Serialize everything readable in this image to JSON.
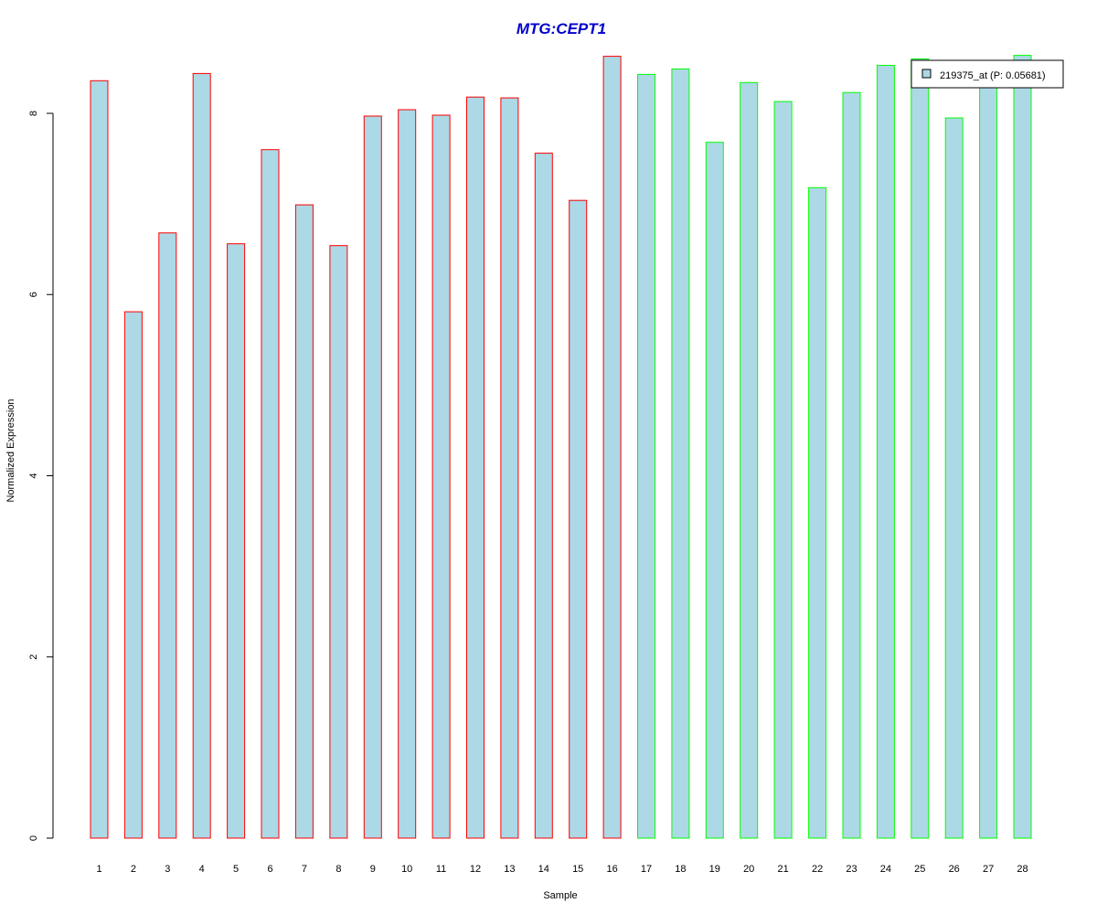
{
  "colors": {
    "bar_fill": "#add8e6",
    "group1_border": "#ff0000",
    "group2_border": "#00ff00",
    "title": "#0000cc",
    "axis": "#000000"
  },
  "chart_data": {
    "type": "bar",
    "title": "MTG:CEPT1",
    "xlabel": "Sample",
    "ylabel": "Normalized Expression",
    "ylim": [
      0,
      8.65
    ],
    "yticks": [
      0,
      2,
      4,
      6,
      8
    ],
    "grid": false,
    "legend_position": "top-right",
    "categories": [
      "1",
      "2",
      "3",
      "4",
      "5",
      "6",
      "7",
      "8",
      "9",
      "10",
      "11",
      "12",
      "13",
      "14",
      "15",
      "16",
      "17",
      "18",
      "19",
      "20",
      "21",
      "22",
      "23",
      "24",
      "25",
      "26",
      "27",
      "28"
    ],
    "series": [
      {
        "name": "219375_at (P: 0.05681)",
        "values": [
          8.36,
          5.81,
          6.68,
          8.44,
          6.56,
          7.6,
          6.99,
          6.54,
          7.97,
          8.04,
          7.98,
          8.18,
          8.17,
          7.56,
          7.04,
          8.63,
          8.43,
          8.49,
          7.68,
          8.34,
          8.13,
          7.18,
          8.23,
          8.53,
          8.6,
          7.95,
          8.43,
          8.64
        ],
        "border_groups": [
          "group1",
          "group1",
          "group1",
          "group1",
          "group1",
          "group1",
          "group1",
          "group1",
          "group1",
          "group1",
          "group1",
          "group1",
          "group1",
          "group1",
          "group1",
          "group1",
          "group2",
          "group2",
          "group2",
          "group2",
          "group2",
          "group2",
          "group2",
          "group2",
          "group2",
          "group2",
          "group2",
          "group2"
        ]
      }
    ]
  }
}
